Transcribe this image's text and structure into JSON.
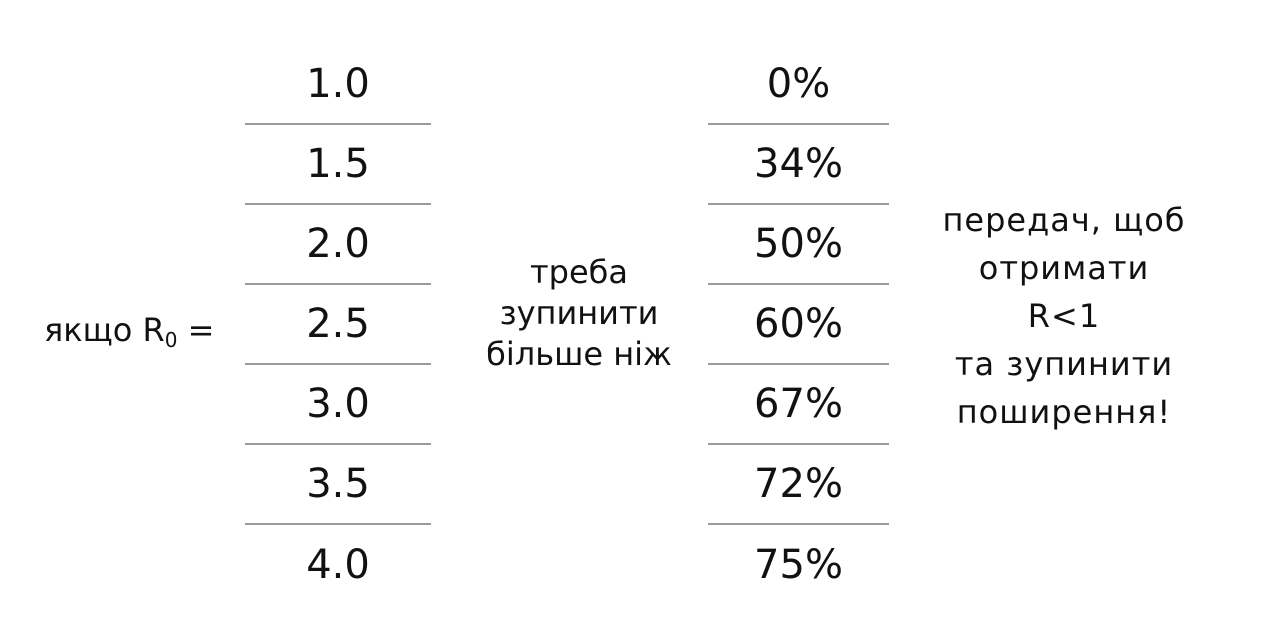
{
  "left_label": {
    "prefix": "якщо R",
    "subscript": "0",
    "suffix": " ="
  },
  "r0_values": [
    "1.0",
    "1.5",
    "2.0",
    "2.5",
    "3.0",
    "3.5",
    "4.0"
  ],
  "middle_text": [
    "треба",
    "зупинити",
    "більше ніж"
  ],
  "percentages": [
    "0%",
    "34%",
    "50%",
    "60%",
    "67%",
    "72%",
    "75%"
  ],
  "right_text": [
    "передач, щоб",
    "отримати",
    "R<1",
    "та зупинити",
    "поширення!"
  ]
}
